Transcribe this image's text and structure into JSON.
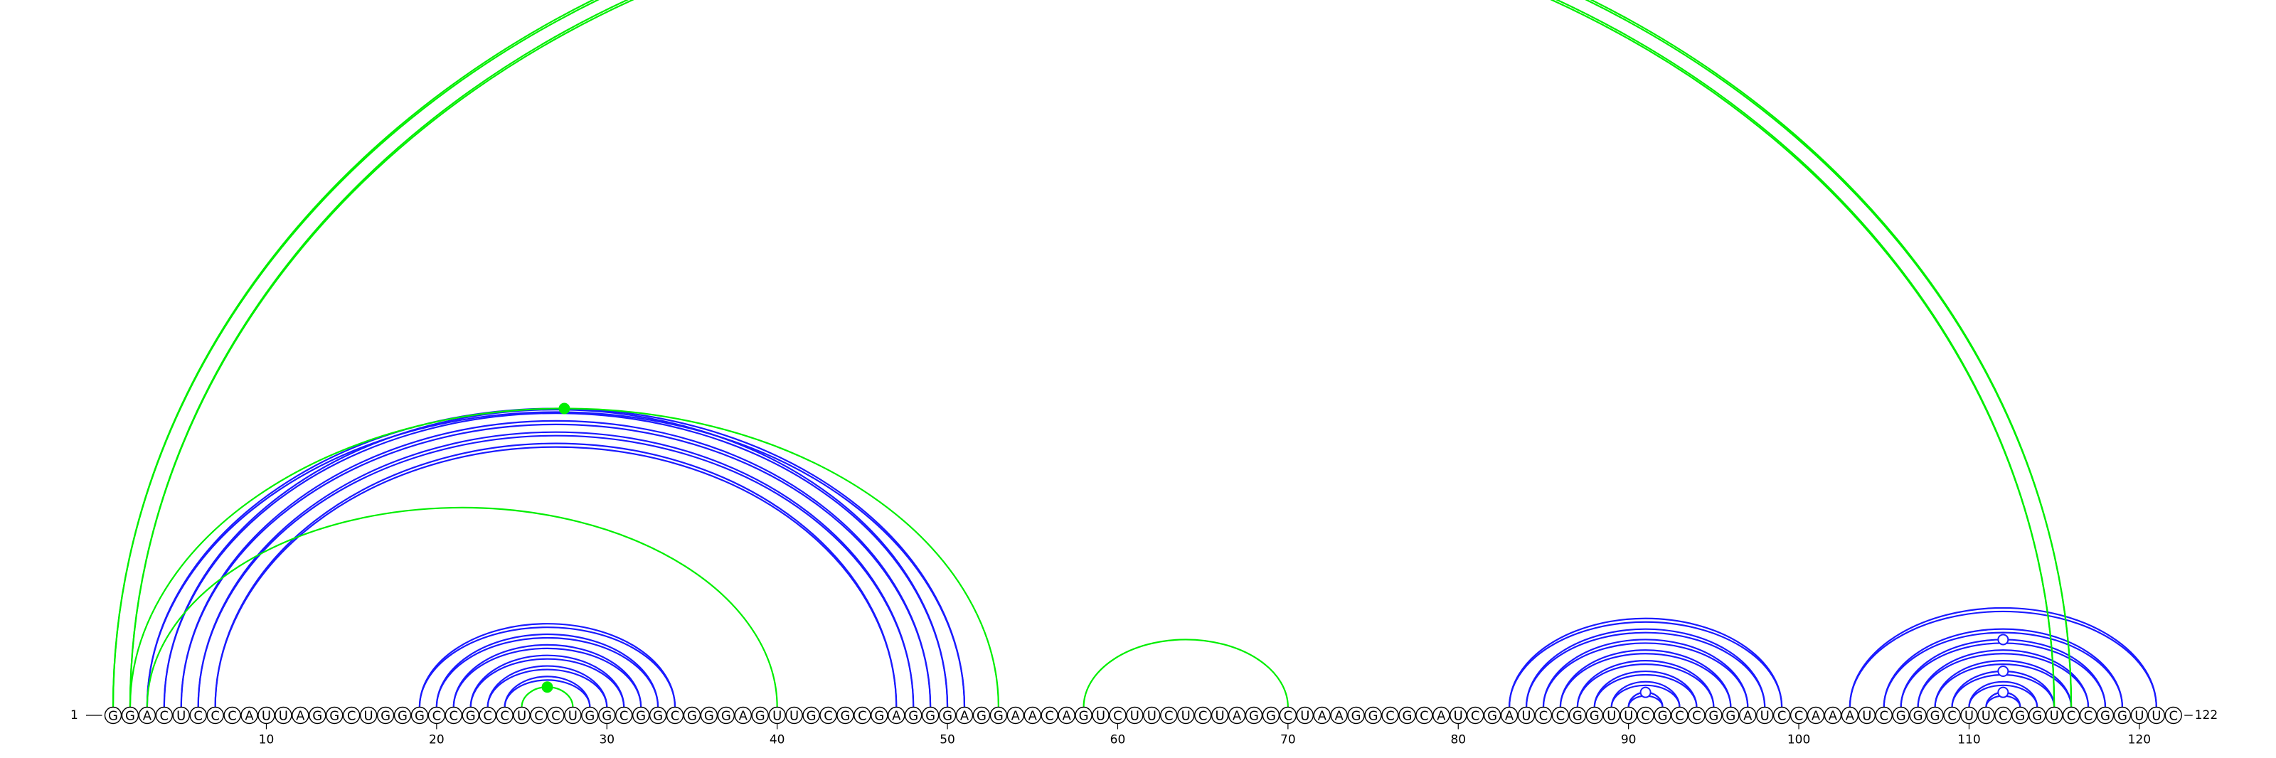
{
  "diagram": {
    "sequence": "GGACUCCCAUUAGGCUGGGCCGCCUCCUGGCGGCGGGAGUUGCGCGAGGGAGGAACAGUCUUCUCUAGGCUAAGGCGCAUCGAUCCGGUUCGCCGGAUCCAAAUCGGGCUUCGGUCCGGUUC",
    "start_label": "1",
    "end_label": "122",
    "ticks": [
      {
        "pos": 10,
        "label": "10"
      },
      {
        "pos": 20,
        "label": "20"
      },
      {
        "pos": 30,
        "label": "30"
      },
      {
        "pos": 40,
        "label": "40"
      },
      {
        "pos": 50,
        "label": "50"
      },
      {
        "pos": 60,
        "label": "60"
      },
      {
        "pos": 70,
        "label": "70"
      },
      {
        "pos": 80,
        "label": "80"
      },
      {
        "pos": 90,
        "label": "90"
      },
      {
        "pos": 100,
        "label": "100"
      },
      {
        "pos": 110,
        "label": "110"
      },
      {
        "pos": 120,
        "label": "120"
      }
    ],
    "colors": {
      "blue": "#1a1aff",
      "green": "#00ee00",
      "text": "#000000"
    },
    "blue_pairs": [
      [
        3,
        51
      ],
      [
        4,
        50
      ],
      [
        5,
        49
      ],
      [
        6,
        48
      ],
      [
        7,
        47
      ],
      [
        19,
        34
      ],
      [
        20,
        33
      ],
      [
        21,
        32
      ],
      [
        22,
        31
      ],
      [
        23,
        30
      ],
      [
        24,
        29
      ],
      [
        83,
        99
      ],
      [
        84,
        98
      ],
      [
        85,
        97
      ],
      [
        86,
        96
      ],
      [
        87,
        95
      ],
      [
        88,
        94
      ],
      [
        89,
        93
      ],
      [
        90,
        92
      ],
      [
        103,
        121
      ],
      [
        105,
        119
      ],
      [
        106,
        118
      ],
      [
        107,
        117
      ],
      [
        108,
        116
      ],
      [
        109,
        115
      ],
      [
        110,
        114
      ],
      [
        111,
        113
      ]
    ],
    "green_pairs": [
      [
        1,
        116
      ],
      [
        2,
        115
      ],
      [
        3,
        40
      ],
      [
        2,
        53
      ],
      [
        25,
        28
      ],
      [
        58,
        70
      ]
    ],
    "markers": [
      {
        "pos": 27.5,
        "pair": [
          2,
          53
        ],
        "type": "filled",
        "color": "green"
      },
      {
        "pos": 26.5,
        "pair": [
          25,
          28
        ],
        "type": "filled",
        "color": "green"
      },
      {
        "pos": 91,
        "pair": [
          90,
          92
        ],
        "type": "open",
        "color": "blue"
      },
      {
        "pos": 112,
        "pair": [
          111,
          113
        ],
        "type": "open",
        "color": "blue"
      },
      {
        "pos": 112,
        "pair": [
          109,
          115
        ],
        "type": "open",
        "color": "blue"
      },
      {
        "pos": 112,
        "pair": [
          106,
          118
        ],
        "type": "open",
        "color": "blue"
      }
    ]
  }
}
